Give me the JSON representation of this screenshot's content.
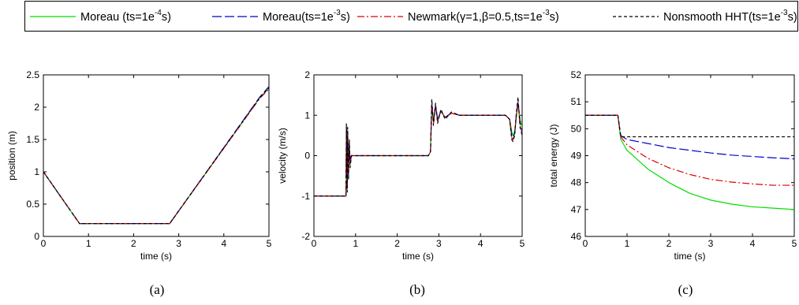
{
  "legend": {
    "entries": [
      {
        "pre": "Moreau (ts=1e",
        "sup": "-4",
        "post": "s)",
        "color": "#00dd00",
        "dash": "solid"
      },
      {
        "pre": "Moreau(ts=1e",
        "sup": "-3",
        "post": "s)",
        "color": "#0000cc",
        "dash": "longdash"
      },
      {
        "pre": "Newmark(γ=1,β=0.5,ts=1e",
        "sup": "-3",
        "post": "s)",
        "color": "#dd0000",
        "dash": "dashdot"
      },
      {
        "pre": "Nonsmooth HHT(ts=1e",
        "sup": "-3",
        "post": "s)",
        "color": "#000000",
        "dash": "dashed"
      }
    ]
  },
  "chart_data": [
    {
      "type": "line",
      "caption": "(a)",
      "xlabel": "time (s)",
      "ylabel": "position (m)",
      "xlim": [
        0,
        5
      ],
      "ylim": [
        0,
        2.5
      ],
      "xticks": [
        "0",
        "1",
        "2",
        "3",
        "4",
        "5"
      ],
      "yticks": [
        "0",
        "0.5",
        "1",
        "1.5",
        "2",
        "2.5"
      ],
      "series": [
        {
          "ref": "Moreau (ts=1e-4s)",
          "x": [
            0,
            0.8,
            2.8,
            4.8,
            5
          ],
          "y": [
            1.0,
            0.2,
            0.2,
            2.15,
            2.3
          ]
        },
        {
          "ref": "Moreau(ts=1e-3s)",
          "x": [
            0,
            0.8,
            2.8,
            4.8,
            5
          ],
          "y": [
            1.0,
            0.2,
            0.2,
            2.16,
            2.32
          ]
        },
        {
          "ref": "Newmark(γ=1,β=0.5,ts=1e-3s)",
          "x": [
            0,
            0.8,
            2.8,
            4.8,
            5
          ],
          "y": [
            1.0,
            0.2,
            0.2,
            2.14,
            2.28
          ]
        },
        {
          "ref": "Nonsmooth HHT(ts=1e-3s)",
          "x": [
            0,
            0.8,
            2.8,
            4.8,
            5
          ],
          "y": [
            1.0,
            0.2,
            0.2,
            2.15,
            2.3
          ]
        }
      ]
    },
    {
      "type": "line",
      "caption": "(b)",
      "xlabel": "time (s)",
      "ylabel": "velocity (m/s)",
      "xlim": [
        0,
        5
      ],
      "ylim": [
        -2,
        2
      ],
      "xticks": [
        "0",
        "1",
        "2",
        "3",
        "4",
        "5"
      ],
      "yticks": [
        "-2",
        "-1",
        "0",
        "1",
        "2"
      ],
      "series": [
        {
          "ref": "Moreau (ts=1e-4s)",
          "x": [
            0,
            0.77,
            0.78,
            0.8,
            0.81,
            0.83,
            0.85,
            0.87,
            0.9,
            2.75,
            2.8,
            2.83,
            2.87,
            2.92,
            2.97,
            3.05,
            3.15,
            3.3,
            3.5,
            4.0,
            4.6,
            4.7,
            4.75,
            4.78,
            4.82,
            4.86,
            4.9,
            4.95,
            5.0
          ],
          "y": [
            -1,
            -1,
            0.5,
            -0.6,
            0.4,
            -0.3,
            0.2,
            -0.1,
            0,
            0,
            0.1,
            1.2,
            0.9,
            1.2,
            0.9,
            1.1,
            0.95,
            1.05,
            1.0,
            1.0,
            1.0,
            0.9,
            0.6,
            0.5,
            0.6,
            0.95,
            1.3,
            0.9,
            0.7
          ]
        },
        {
          "ref": "Moreau(ts=1e-3s)",
          "x": [
            0,
            0.77,
            0.78,
            0.8,
            0.81,
            0.83,
            0.85,
            0.87,
            0.9,
            2.75,
            2.8,
            2.83,
            2.87,
            2.92,
            2.97,
            3.05,
            3.15,
            3.3,
            3.5,
            4.0,
            4.6,
            4.7,
            4.75,
            4.78,
            4.82,
            4.86,
            4.9,
            4.95,
            5.0
          ],
          "y": [
            -1,
            -1,
            0.7,
            -0.8,
            0.6,
            -0.5,
            0.3,
            -0.2,
            0,
            0,
            0.1,
            1.3,
            0.85,
            1.25,
            0.9,
            1.1,
            0.95,
            1.05,
            1.0,
            1.0,
            1.0,
            0.9,
            0.5,
            0.45,
            0.55,
            1.0,
            1.35,
            0.8,
            0.6
          ]
        },
        {
          "ref": "Newmark(γ=1,β=0.5,ts=1e-3s)",
          "x": [
            0,
            0.77,
            0.78,
            0.8,
            0.81,
            0.83,
            0.85,
            0.87,
            0.9,
            2.75,
            2.8,
            2.83,
            2.87,
            2.92,
            2.97,
            3.05,
            3.15,
            3.3,
            3.5,
            4.0,
            4.6,
            4.7,
            4.75,
            4.78,
            4.82,
            4.86,
            4.9,
            4.95,
            5.0
          ],
          "y": [
            -1,
            -1,
            0.6,
            -0.7,
            0.5,
            -0.4,
            0.25,
            -0.15,
            0,
            0,
            0.1,
            1.25,
            0.8,
            1.2,
            0.85,
            1.1,
            0.95,
            1.05,
            1.0,
            1.0,
            1.0,
            0.9,
            0.45,
            0.4,
            0.5,
            1.0,
            1.3,
            0.75,
            0.55
          ]
        },
        {
          "ref": "Nonsmooth HHT(ts=1e-3s)",
          "x": [
            0,
            0.77,
            0.78,
            0.8,
            0.81,
            0.83,
            0.85,
            0.87,
            0.9,
            2.75,
            2.8,
            2.83,
            2.87,
            2.92,
            2.97,
            3.05,
            3.15,
            3.3,
            3.5,
            4.0,
            4.6,
            4.7,
            4.75,
            4.78,
            4.82,
            4.86,
            4.9,
            4.95,
            5.0
          ],
          "y": [
            -1,
            -1,
            0.8,
            -0.9,
            0.7,
            -0.6,
            0.4,
            -0.3,
            0,
            0,
            0.1,
            1.4,
            0.75,
            1.3,
            0.8,
            1.15,
            0.9,
            1.08,
            1.0,
            1.0,
            1.0,
            0.9,
            0.4,
            0.35,
            0.5,
            1.05,
            1.45,
            0.7,
            0.5
          ]
        }
      ]
    },
    {
      "type": "line",
      "caption": "(c)",
      "xlabel": "time (s)",
      "ylabel": "total energy  (J)",
      "xlim": [
        0,
        5
      ],
      "ylim": [
        46,
        52
      ],
      "xticks": [
        "0",
        "1",
        "2",
        "3",
        "4",
        "5"
      ],
      "yticks": [
        "46",
        "47",
        "48",
        "49",
        "50",
        "51",
        "52"
      ],
      "series": [
        {
          "ref": "Moreau (ts=1e-4s)",
          "x": [
            0,
            0.78,
            0.85,
            1.0,
            1.5,
            2.0,
            2.5,
            3.0,
            3.5,
            4.0,
            4.5,
            5.0
          ],
          "y": [
            50.5,
            50.5,
            49.6,
            49.2,
            48.5,
            48.0,
            47.6,
            47.35,
            47.2,
            47.1,
            47.05,
            47.0
          ]
        },
        {
          "ref": "Moreau(ts=1e-3s)",
          "x": [
            0,
            0.78,
            0.85,
            1.0,
            1.5,
            2.0,
            2.5,
            3.0,
            3.5,
            4.0,
            4.5,
            5.0
          ],
          "y": [
            50.5,
            50.5,
            49.75,
            49.6,
            49.45,
            49.3,
            49.2,
            49.1,
            49.02,
            48.97,
            48.92,
            48.88
          ]
        },
        {
          "ref": "Newmark(γ=1,β=0.5,ts=1e-3s)",
          "x": [
            0,
            0.78,
            0.85,
            1.0,
            1.5,
            2.0,
            2.5,
            3.0,
            3.5,
            4.0,
            4.5,
            5.0
          ],
          "y": [
            50.5,
            50.5,
            49.7,
            49.4,
            48.9,
            48.55,
            48.3,
            48.12,
            48.02,
            47.95,
            47.9,
            47.9
          ]
        },
        {
          "ref": "Nonsmooth HHT(ts=1e-3s)",
          "x": [
            0,
            0.78,
            0.85,
            1.0,
            5.0
          ],
          "y": [
            50.5,
            50.5,
            49.7,
            49.7,
            49.7
          ]
        }
      ]
    }
  ]
}
